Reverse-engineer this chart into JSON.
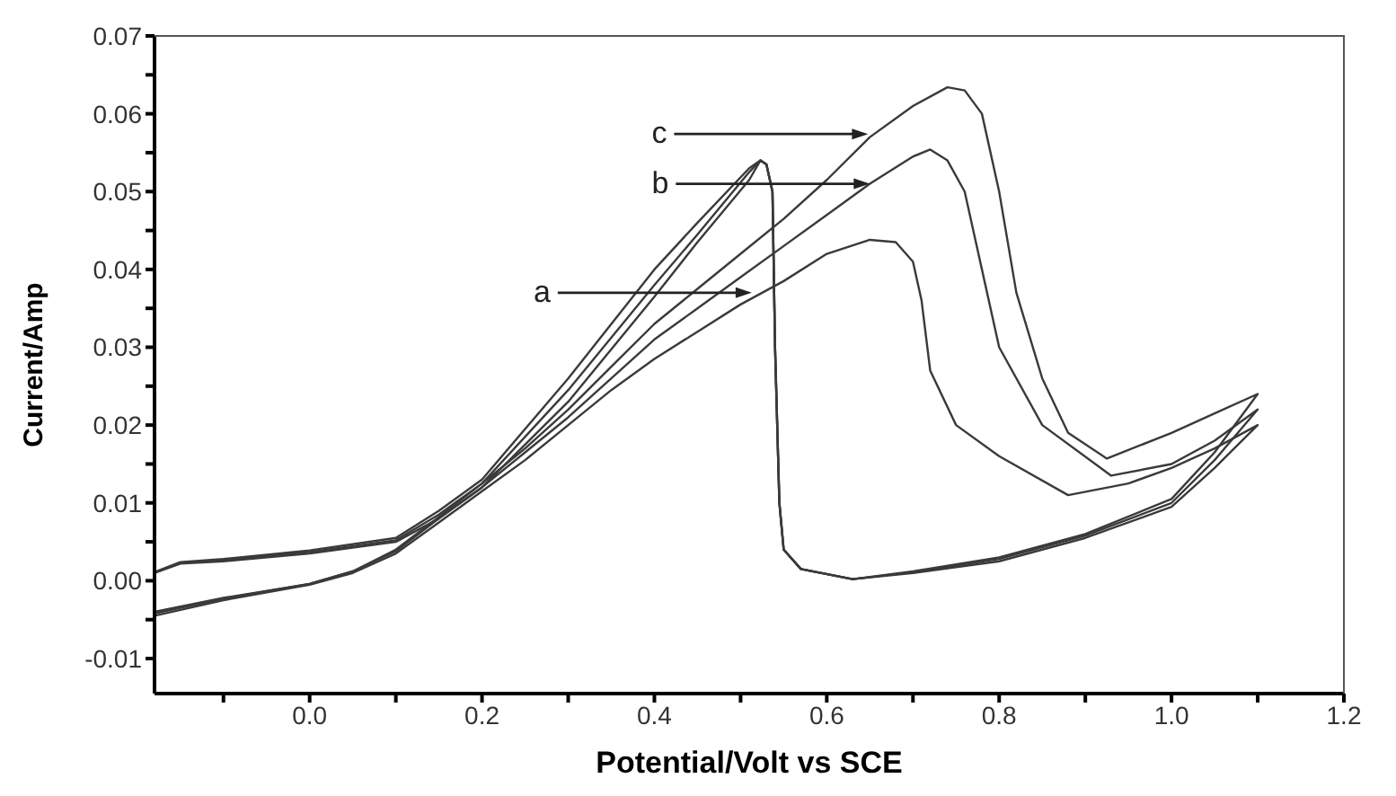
{
  "chart_data": {
    "type": "line",
    "xlabel": "Potential/Volt vs SCE",
    "ylabel": "Current/Amp",
    "xlim": [
      -0.18,
      1.2
    ],
    "ylim": [
      -0.0145,
      0.07
    ],
    "xticks": [
      {
        "value": -0.1,
        "label": null
      },
      {
        "value": 0,
        "label": "0.0"
      },
      {
        "value": 0.1,
        "label": null
      },
      {
        "value": 0.2,
        "label": "0.2"
      },
      {
        "value": 0.3,
        "label": null
      },
      {
        "value": 0.4,
        "label": "0.4"
      },
      {
        "value": 0.5,
        "label": null
      },
      {
        "value": 0.6,
        "label": "0.6"
      },
      {
        "value": 0.7,
        "label": null
      },
      {
        "value": 0.8,
        "label": "0.8"
      },
      {
        "value": 0.9,
        "label": null
      },
      {
        "value": 1,
        "label": "1.0"
      },
      {
        "value": 1.1,
        "label": null
      },
      {
        "value": 1.2,
        "label": "1.2"
      }
    ],
    "yticks": [
      {
        "value": -0.01,
        "label": "-0.01"
      },
      {
        "value": -0.005,
        "label": null
      },
      {
        "value": 0,
        "label": "0.00"
      },
      {
        "value": 0.005,
        "label": null
      },
      {
        "value": 0.01,
        "label": "0.01"
      },
      {
        "value": 0.015,
        "label": null
      },
      {
        "value": 0.02,
        "label": "0.02"
      },
      {
        "value": 0.025,
        "label": null
      },
      {
        "value": 0.03,
        "label": "0.03"
      },
      {
        "value": 0.035,
        "label": null
      },
      {
        "value": 0.04,
        "label": "0.04"
      },
      {
        "value": 0.045,
        "label": null
      },
      {
        "value": 0.05,
        "label": "0.05"
      },
      {
        "value": 0.055,
        "label": null
      },
      {
        "value": 0.06,
        "label": "0.06"
      },
      {
        "value": 0.065,
        "label": null
      },
      {
        "value": 0.07,
        "label": "0.07"
      }
    ],
    "grid": false,
    "legend": false,
    "marker": "none",
    "line_style": "solid",
    "series": [
      {
        "color": "#3a3a3a",
        "x": [
          -0.18,
          -0.1,
          0.0,
          0.05,
          0.1,
          0.15,
          0.2,
          0.25,
          0.3,
          0.35,
          0.4,
          0.45,
          0.5,
          0.55,
          0.6,
          0.65,
          0.68,
          0.7,
          0.71,
          0.72,
          0.75,
          0.8,
          0.88,
          0.95,
          1.0,
          1.05,
          1.1,
          1.05,
          1.0,
          0.9,
          0.8,
          0.7,
          0.63,
          0.57,
          0.55,
          0.545,
          0.54,
          0.537,
          0.53,
          0.523,
          0.51,
          0.45,
          0.4,
          0.3,
          0.2,
          0.15,
          0.1,
          0.0,
          -0.1,
          -0.15,
          -0.18
        ],
        "values": [
          -0.0045,
          -0.0025,
          -0.0005,
          0.001,
          0.0035,
          0.0075,
          0.0115,
          0.0155,
          0.02,
          0.0245,
          0.0285,
          0.032,
          0.0355,
          0.0385,
          0.042,
          0.0438,
          0.0435,
          0.041,
          0.036,
          0.027,
          0.02,
          0.016,
          0.011,
          0.0125,
          0.0145,
          0.017,
          0.02,
          0.0145,
          0.0095,
          0.0055,
          0.0025,
          0.001,
          0.0002,
          0.0015,
          0.004,
          0.01,
          0.03,
          0.05,
          0.0535,
          0.054,
          0.0515,
          0.0435,
          0.0365,
          0.023,
          0.012,
          0.008,
          0.005,
          0.0035,
          0.0025,
          0.0022,
          0.001
        ]
      },
      {
        "color": "#3a3a3a",
        "x": [
          -0.18,
          -0.1,
          0.0,
          0.05,
          0.1,
          0.15,
          0.2,
          0.25,
          0.3,
          0.35,
          0.4,
          0.45,
          0.5,
          0.55,
          0.6,
          0.65,
          0.7,
          0.72,
          0.74,
          0.76,
          0.78,
          0.8,
          0.85,
          0.93,
          1.0,
          1.05,
          1.1,
          1.05,
          1.0,
          0.9,
          0.8,
          0.7,
          0.63,
          0.57,
          0.55,
          0.545,
          0.54,
          0.537,
          0.53,
          0.523,
          0.51,
          0.45,
          0.4,
          0.3,
          0.2,
          0.15,
          0.1,
          0.0,
          -0.1,
          -0.15,
          -0.18
        ],
        "values": [
          -0.004,
          -0.0022,
          -0.0004,
          0.0012,
          0.0038,
          0.008,
          0.012,
          0.0165,
          0.021,
          0.026,
          0.031,
          0.035,
          0.039,
          0.043,
          0.047,
          0.051,
          0.0545,
          0.0554,
          0.054,
          0.05,
          0.04,
          0.03,
          0.02,
          0.0135,
          0.015,
          0.018,
          0.022,
          0.0155,
          0.01,
          0.0058,
          0.0028,
          0.0011,
          0.0002,
          0.0015,
          0.004,
          0.01,
          0.03,
          0.05,
          0.0535,
          0.054,
          0.0525,
          0.0445,
          0.038,
          0.0245,
          0.0125,
          0.0085,
          0.0052,
          0.0037,
          0.0027,
          0.0023,
          0.001
        ]
      },
      {
        "color": "#3a3a3a",
        "x": [
          -0.18,
          -0.1,
          0.0,
          0.05,
          0.1,
          0.15,
          0.2,
          0.25,
          0.3,
          0.35,
          0.4,
          0.45,
          0.5,
          0.55,
          0.6,
          0.65,
          0.7,
          0.74,
          0.76,
          0.78,
          0.8,
          0.82,
          0.85,
          0.88,
          0.925,
          1.0,
          1.05,
          1.1,
          1.05,
          1.0,
          0.9,
          0.8,
          0.7,
          0.63,
          0.57,
          0.55,
          0.545,
          0.54,
          0.537,
          0.53,
          0.523,
          0.51,
          0.45,
          0.4,
          0.3,
          0.2,
          0.15,
          0.1,
          0.0,
          -0.1,
          -0.15,
          -0.18
        ],
        "values": [
          -0.0042,
          -0.0023,
          -0.0004,
          0.0012,
          0.004,
          0.0082,
          0.0125,
          0.017,
          0.022,
          0.0275,
          0.033,
          0.0375,
          0.042,
          0.0465,
          0.0515,
          0.057,
          0.061,
          0.0634,
          0.063,
          0.06,
          0.05,
          0.037,
          0.026,
          0.019,
          0.0157,
          0.019,
          0.0215,
          0.024,
          0.0165,
          0.0105,
          0.006,
          0.003,
          0.0012,
          0.0002,
          0.0015,
          0.004,
          0.01,
          0.03,
          0.05,
          0.0535,
          0.054,
          0.053,
          0.046,
          0.04,
          0.026,
          0.013,
          0.009,
          0.0055,
          0.0039,
          0.0028,
          0.0024,
          0.0011
        ]
      }
    ],
    "annotations": [
      {
        "text": "a",
        "x": 0.513,
        "y": 0.037
      },
      {
        "text": "b",
        "x": 0.65,
        "y": 0.051
      },
      {
        "text": "c",
        "x": 0.648,
        "y": 0.0574
      }
    ]
  }
}
